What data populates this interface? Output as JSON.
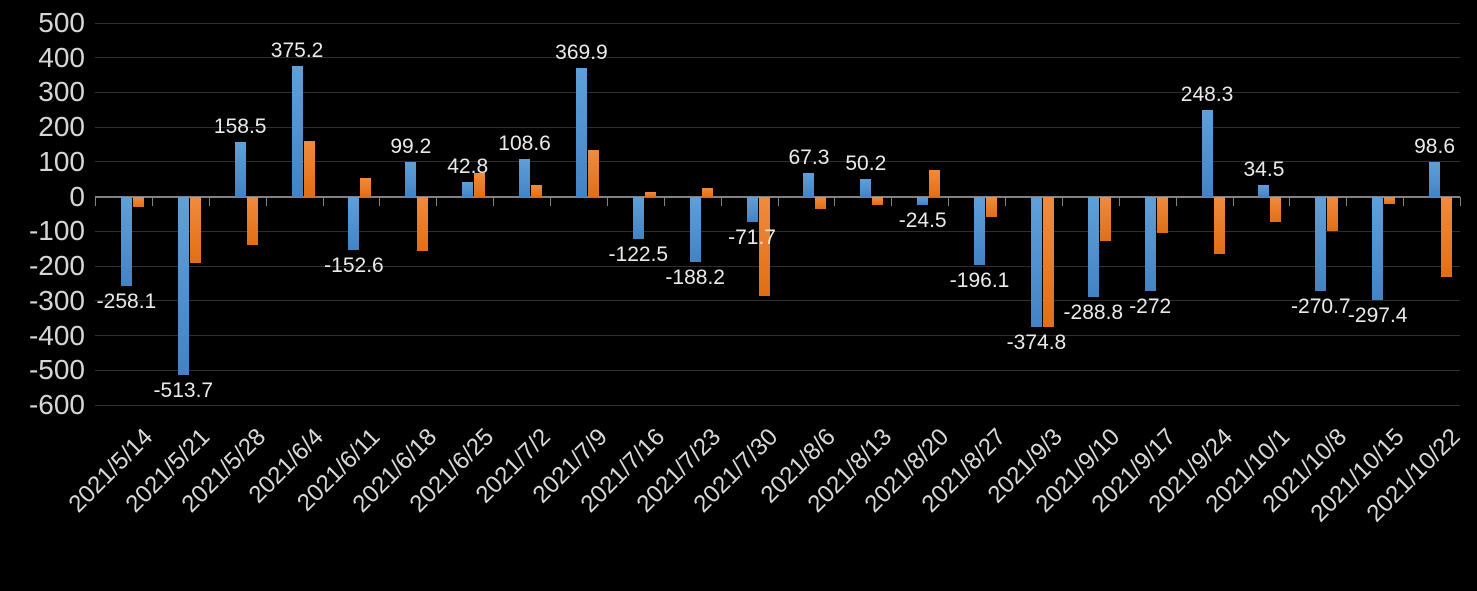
{
  "chart_data": {
    "type": "bar",
    "title": "",
    "legend": "none",
    "grid": true,
    "background": "#000000",
    "categories": [
      "2021/5/14",
      "2021/5/21",
      "2021/5/28",
      "2021/6/4",
      "2021/6/11",
      "2021/6/18",
      "2021/6/25",
      "2021/7/2",
      "2021/7/9",
      "2021/7/16",
      "2021/7/23",
      "2021/7/30",
      "2021/8/6",
      "2021/8/13",
      "2021/8/20",
      "2021/8/27",
      "2021/9/3",
      "2021/9/10",
      "2021/9/17",
      "2021/9/24",
      "2021/10/1",
      "2021/10/8",
      "2021/10/15",
      "2021/10/22"
    ],
    "series": [
      {
        "name": "blue-series",
        "color": "#4b8ccb",
        "labels_visible": true,
        "values": [
          -258.1,
          -513.7,
          158.5,
          375.2,
          -152.6,
          99.2,
          42.8,
          108.6,
          369.9,
          -122.5,
          -188.2,
          -71.7,
          67.3,
          50.2,
          -24.5,
          -196.1,
          -374.8,
          -288.8,
          -272,
          248.3,
          34.5,
          -270.7,
          -297.4,
          98.6
        ]
      },
      {
        "name": "orange-series",
        "color": "#ed7d31",
        "labels_visible": false,
        "values": [
          -31,
          -192,
          -140,
          160,
          53,
          -157,
          67,
          34,
          134,
          12,
          26,
          -287,
          -35,
          -24,
          77,
          -59,
          -375,
          -129,
          -104,
          -164,
          -72,
          -98,
          -21,
          -232
        ]
      }
    ],
    "data_labels": [
      "-258.1",
      "-513.7",
      "158.5",
      "375.2",
      "-152.6",
      "99.2",
      "42.8",
      "108.6",
      "369.9",
      "-122.5",
      "-188.2",
      "-71.7",
      "67.3",
      "50.2",
      "-24.5",
      "-196.1",
      "-374.8",
      "-288.8",
      "-272",
      "248.3",
      "34.5",
      "-270.7",
      "-297.4",
      "98.6"
    ],
    "xlabel": "",
    "ylabel": "",
    "y_axis": {
      "min": -600,
      "max": 500,
      "step": 100,
      "ticks": [
        "500",
        "400",
        "300",
        "200",
        "100",
        "0",
        "-100",
        "-200",
        "-300",
        "-400",
        "-500",
        "-600"
      ]
    },
    "colors": {
      "background": "#000000",
      "gridline": "#2e2e2e",
      "axis_line": "#828282",
      "axis_text": "#d6d6d6",
      "data_label_text": "#eaeaea"
    }
  }
}
